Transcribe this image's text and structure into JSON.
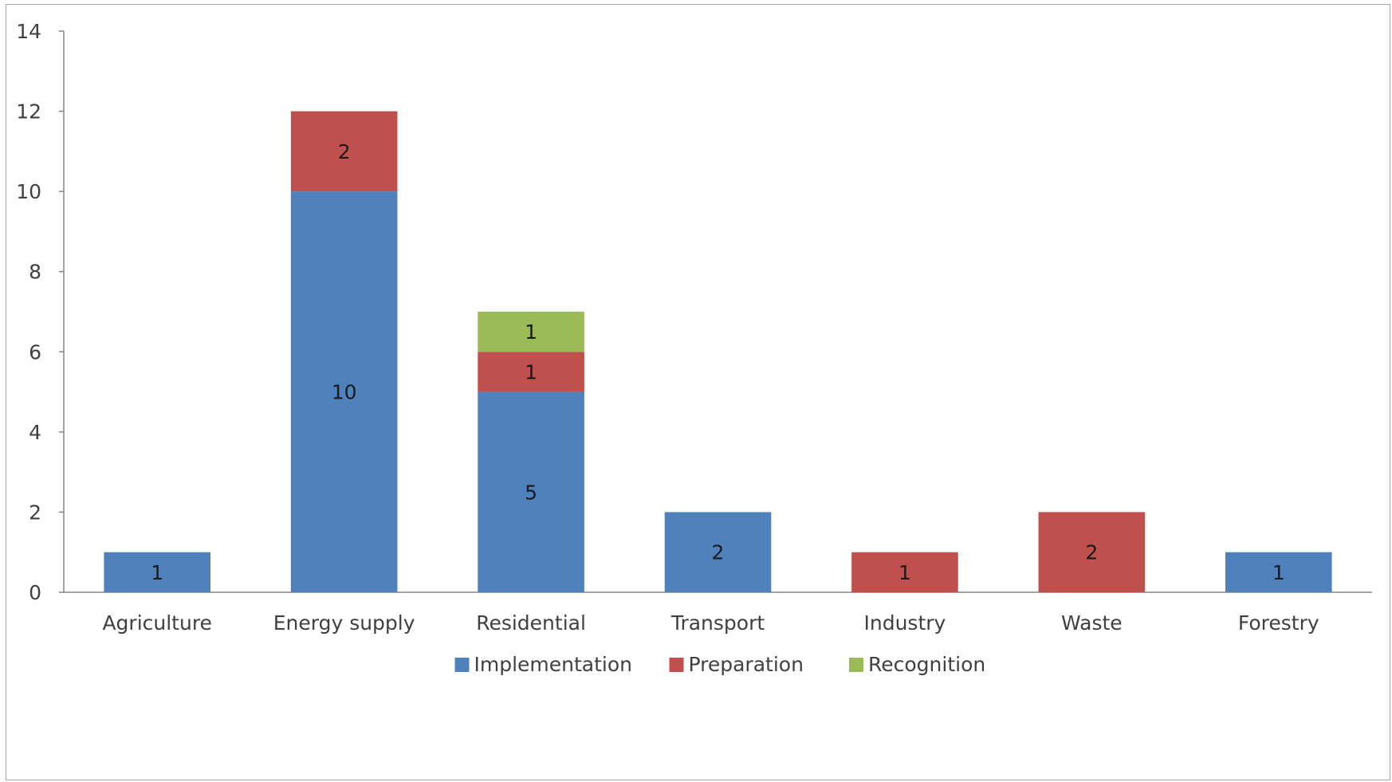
{
  "chart_data": {
    "type": "bar",
    "stacked": true,
    "categories": [
      "Agriculture",
      "Energy supply",
      "Residential",
      "Transport",
      "Industry",
      "Waste",
      "Forestry"
    ],
    "series": [
      {
        "name": "Implementation",
        "values": [
          1,
          10,
          5,
          2,
          0,
          0,
          1
        ],
        "color": "#4f81bd"
      },
      {
        "name": "Preparation",
        "values": [
          0,
          2,
          1,
          0,
          1,
          2,
          0
        ],
        "color": "#c0504d"
      },
      {
        "name": "Recognition",
        "values": [
          0,
          0,
          1,
          0,
          0,
          0,
          0
        ],
        "color": "#9bbb59"
      }
    ],
    "title": "",
    "xlabel": "",
    "ylabel": "",
    "ylim": [
      0,
      14
    ],
    "yticks": [
      "0",
      "2",
      "4",
      "6",
      "8",
      "10",
      "12",
      "14"
    ],
    "grid": false,
    "legend": "bottom",
    "data_labels": true
  }
}
